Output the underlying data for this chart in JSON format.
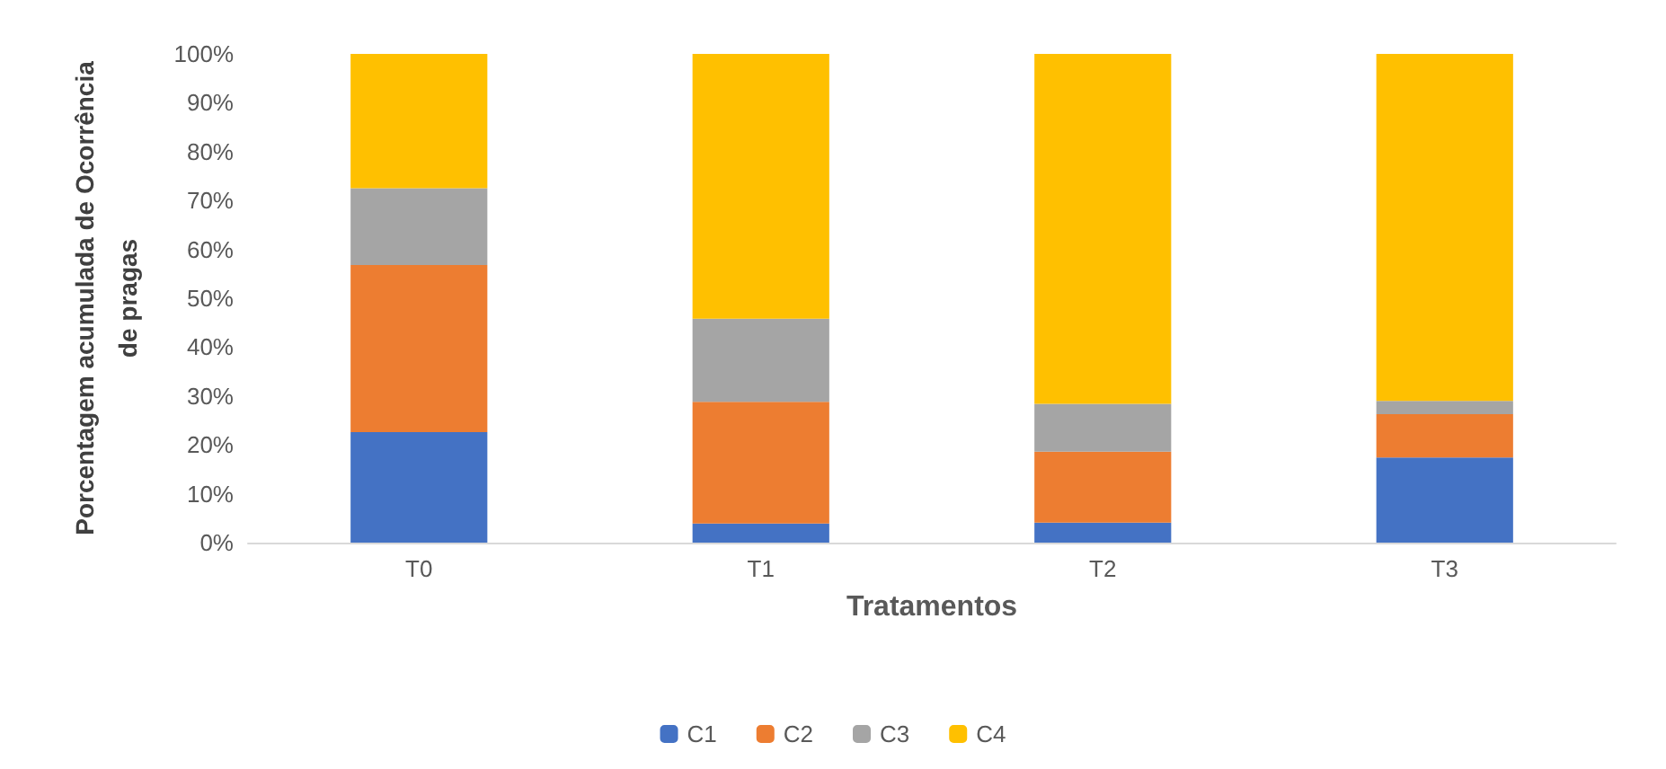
{
  "chart_data": {
    "type": "bar",
    "stacked": true,
    "xlabel": "Tratamentos",
    "ylabel": "Porcentagem acumulada de Ocorrência\nde pragas",
    "categories": [
      "T0",
      "T1",
      "T2",
      "T3"
    ],
    "series": [
      {
        "name": "C1",
        "color": "#4472c4",
        "values": [
          22.6,
          3.9,
          4.1,
          17.4
        ]
      },
      {
        "name": "C2",
        "color": "#ed7d31",
        "values": [
          34.2,
          24.9,
          14.5,
          8.9
        ]
      },
      {
        "name": "C3",
        "color": "#a5a5a5",
        "values": [
          15.7,
          17.0,
          9.8,
          2.7
        ]
      },
      {
        "name": "C4",
        "color": "#ffc000",
        "values": [
          27.5,
          54.2,
          71.6,
          71.0
        ]
      }
    ],
    "ylim": [
      0,
      100
    ],
    "yticks": [
      {
        "value": 0,
        "label": "0%"
      },
      {
        "value": 10,
        "label": "10%"
      },
      {
        "value": 20,
        "label": "20%"
      },
      {
        "value": 30,
        "label": "30%"
      },
      {
        "value": 40,
        "label": "40%"
      },
      {
        "value": 50,
        "label": "50%"
      },
      {
        "value": 60,
        "label": "60%"
      },
      {
        "value": 70,
        "label": "70%"
      },
      {
        "value": 80,
        "label": "80%"
      },
      {
        "value": 90,
        "label": "90%"
      },
      {
        "value": 100,
        "label": "100%"
      }
    ],
    "grid": false,
    "legend": "bottom"
  }
}
